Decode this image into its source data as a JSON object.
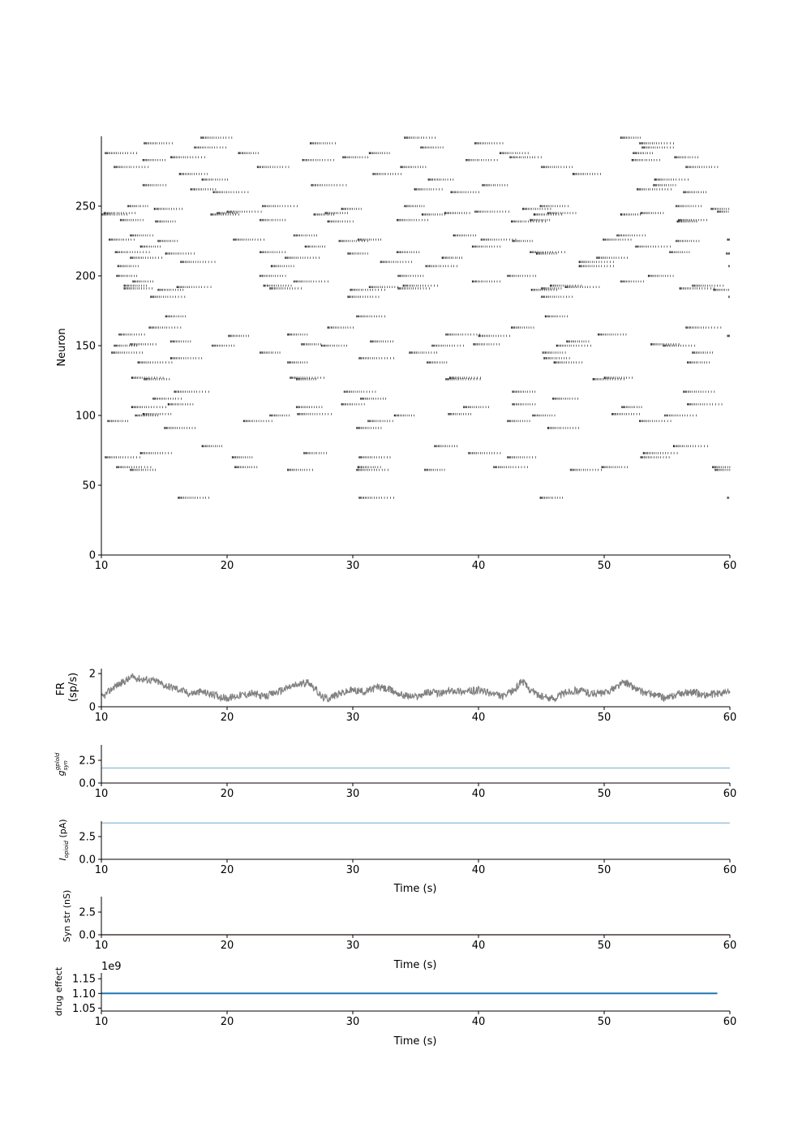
{
  "chart_data": [
    {
      "type": "scatter",
      "subtype": "raster",
      "title": "",
      "xlabel": "",
      "ylabel": "Neuron",
      "xlim": [
        10,
        60
      ],
      "ylim": [
        0,
        300
      ],
      "xticks": [
        "10",
        "20",
        "30",
        "40",
        "50",
        "60"
      ],
      "yticks": [
        "0",
        "50",
        "100",
        "150",
        "200",
        "250"
      ],
      "grid": false,
      "legend": "none",
      "marker_color": "#000000",
      "series": [
        {
          "bursts": [
            {
              "neuron": 41,
              "starts": [
                16.1,
                30.5,
                44.9,
                59.8
              ]
            },
            {
              "neuron": 61,
              "starts": [
                12.3,
                24.8,
                30.3,
                35.7,
                47.3,
                58.8
              ]
            },
            {
              "neuron": 63,
              "starts": [
                11.2,
                20.6,
                30.4,
                41.2,
                49.8,
                58.6
              ]
            },
            {
              "neuron": 70,
              "starts": [
                10.3,
                20.4,
                30.5,
                42.3,
                52.9
              ]
            },
            {
              "neuron": 73,
              "starts": [
                13.1,
                26.1,
                39.2,
                53.1
              ]
            },
            {
              "neuron": 78,
              "starts": [
                18.0,
                36.5,
                55.5
              ]
            },
            {
              "neuron": 91,
              "starts": [
                15.0,
                30.3,
                45.5
              ]
            },
            {
              "neuron": 96,
              "starts": [
                10.5,
                21.3,
                31.2,
                42.3,
                52.8
              ]
            },
            {
              "neuron": 100,
              "starts": [
                12.7,
                23.4,
                33.3,
                44.3,
                54.8
              ]
            },
            {
              "neuron": 101,
              "starts": [
                13.3,
                25.6,
                37.6,
                50.6
              ]
            },
            {
              "neuron": 106,
              "starts": [
                12.4,
                25.5,
                38.8,
                51.4
              ]
            },
            {
              "neuron": 108,
              "starts": [
                15.3,
                29.1,
                42.7,
                56.6
              ]
            },
            {
              "neuron": 112,
              "starts": [
                14.1,
                30.6,
                45.9
              ]
            },
            {
              "neuron": 117,
              "starts": [
                15.8,
                29.3,
                42.7,
                56.3
              ]
            },
            {
              "neuron": 126,
              "starts": [
                13.4,
                25.5,
                37.4,
                49.1
              ]
            },
            {
              "neuron": 127,
              "starts": [
                12.4,
                25.0,
                37.7,
                50.0
              ]
            },
            {
              "neuron": 138,
              "starts": [
                12.9,
                24.8,
                35.9,
                46.0,
                56.6
              ]
            },
            {
              "neuron": 141,
              "starts": [
                15.5,
                30.5,
                45.2
              ]
            },
            {
              "neuron": 145,
              "starts": [
                10.8,
                22.6,
                34.5,
                45.1,
                57.0
              ]
            },
            {
              "neuron": 150,
              "starts": [
                11.0,
                18.8,
                27.5,
                36.3,
                46.2,
                54.7
              ]
            },
            {
              "neuron": 151,
              "starts": [
                12.3,
                25.9,
                39.6,
                53.7
              ]
            },
            {
              "neuron": 153,
              "starts": [
                15.5,
                31.4,
                47.0
              ]
            },
            {
              "neuron": 157,
              "starts": [
                20.1,
                40.0,
                59.8
              ]
            },
            {
              "neuron": 158,
              "starts": [
                11.4,
                24.8,
                37.4,
                49.5
              ]
            },
            {
              "neuron": 163,
              "starts": [
                13.8,
                28.0,
                42.6,
                56.5
              ]
            },
            {
              "neuron": 171,
              "starts": [
                15.1,
                30.3,
                45.3
              ]
            },
            {
              "neuron": 185,
              "starts": [
                13.9,
                29.6,
                45.0,
                59.9
              ]
            },
            {
              "neuron": 190,
              "starts": [
                14.5,
                29.8,
                44.2,
                58.7
              ]
            },
            {
              "neuron": 191,
              "starts": [
                11.8,
                23.4,
                33.6,
                45.0,
                56.0
              ]
            },
            {
              "neuron": 192,
              "starts": [
                16.0,
                31.3,
                46.9
              ]
            },
            {
              "neuron": 193,
              "starts": [
                11.8,
                22.9,
                34.0,
                45.7,
                57.0
              ]
            },
            {
              "neuron": 196,
              "starts": [
                12.5,
                25.3,
                39.5,
                51.3
              ]
            },
            {
              "neuron": 200,
              "starts": [
                11.2,
                22.6,
                33.6,
                42.3,
                53.5
              ]
            },
            {
              "neuron": 207,
              "starts": [
                11.3,
                23.5,
                35.8,
                48.0,
                59.9
              ]
            },
            {
              "neuron": 210,
              "starts": [
                16.3,
                32.2,
                48.0
              ]
            },
            {
              "neuron": 213,
              "starts": [
                12.3,
                24.6,
                37.1,
                49.4
              ]
            },
            {
              "neuron": 216,
              "starts": [
                15.1,
                29.6,
                44.6,
                59.7
              ]
            },
            {
              "neuron": 217,
              "starts": [
                11.1,
                22.6,
                33.5,
                44.1,
                55.2
              ]
            },
            {
              "neuron": 221,
              "starts": [
                13.1,
                26.2,
                39.5,
                52.5
              ]
            },
            {
              "neuron": 225,
              "starts": [
                14.5,
                28.9,
                42.7,
                55.7
              ]
            },
            {
              "neuron": 226,
              "starts": [
                10.6,
                20.5,
                30.4,
                40.2,
                49.9,
                59.8
              ]
            },
            {
              "neuron": 229,
              "starts": [
                12.3,
                25.3,
                38.0,
                51.0
              ]
            },
            {
              "neuron": 239,
              "starts": [
                14.3,
                28.0,
                42.6,
                55.8
              ]
            },
            {
              "neuron": 240,
              "starts": [
                11.5,
                22.6,
                33.5,
                44.1,
                55.9
              ]
            },
            {
              "neuron": 244,
              "starts": [
                10.0,
                18.7,
                26.9,
                35.5,
                44.4,
                51.3
              ]
            },
            {
              "neuron": 245,
              "starts": [
                10.2,
                19.2,
                27.8,
                37.3,
                45.5,
                52.9
              ]
            },
            {
              "neuron": 246,
              "starts": [
                20.0,
                39.7,
                59.0
              ]
            },
            {
              "neuron": 248,
              "starts": [
                14.2,
                29.1,
                43.5,
                58.5
              ]
            },
            {
              "neuron": 250,
              "starts": [
                12.1,
                22.8,
                34.1,
                44.9,
                55.7
              ]
            },
            {
              "neuron": 260,
              "starts": [
                18.9,
                37.8,
                56.3
              ]
            },
            {
              "neuron": 262,
              "starts": [
                17.1,
                34.9,
                52.6
              ]
            },
            {
              "neuron": 265,
              "starts": [
                13.3,
                26.7,
                40.3,
                53.9
              ]
            },
            {
              "neuron": 269,
              "starts": [
                18.0,
                36.0,
                54.0
              ]
            },
            {
              "neuron": 273,
              "starts": [
                16.2,
                31.6,
                47.5
              ]
            },
            {
              "neuron": 278,
              "starts": [
                11.0,
                22.4,
                33.8,
                45.0,
                56.5
              ]
            },
            {
              "neuron": 283,
              "starts": [
                13.3,
                26.0,
                39.0,
                52.2
              ]
            },
            {
              "neuron": 285,
              "starts": [
                15.5,
                29.2,
                42.5,
                55.6
              ]
            },
            {
              "neuron": 288,
              "starts": [
                10.3,
                20.9,
                31.3,
                41.7,
                52.3
              ]
            },
            {
              "neuron": 292,
              "starts": [
                17.4,
                35.4,
                53.0
              ]
            },
            {
              "neuron": 295,
              "starts": [
                13.4,
                26.6,
                39.7,
                52.8
              ]
            },
            {
              "neuron": 299,
              "starts": [
                17.9,
                34.1,
                51.3
              ]
            }
          ]
        }
      ]
    },
    {
      "type": "line",
      "xlabel": "",
      "ylabel": "FR\n(sp/s)",
      "xlim": [
        10,
        60
      ],
      "ylim": [
        0,
        2.3
      ],
      "xticks": [
        "10",
        "20",
        "30",
        "40",
        "50",
        "60"
      ],
      "yticks": [
        "0",
        "2"
      ],
      "color": "#808080",
      "series": [
        {
          "x": [
            10,
            11,
            12,
            12.5,
            13,
            14,
            14.5,
            15,
            16,
            17,
            18,
            19,
            20,
            21,
            22,
            23,
            24,
            25,
            26,
            26.5,
            27,
            27.5,
            28,
            29,
            30,
            31,
            32,
            33,
            34,
            35,
            36,
            37,
            38,
            39,
            40,
            41,
            42,
            43,
            43.4,
            44,
            45,
            46,
            47,
            48,
            49,
            50,
            51,
            51.6,
            52,
            53,
            54,
            55,
            56,
            57,
            58,
            59,
            60
          ],
          "y": [
            0.5,
            1.2,
            1.6,
            1.8,
            1.7,
            1.6,
            1.5,
            1.3,
            1.1,
            0.8,
            0.9,
            0.7,
            0.5,
            0.7,
            0.8,
            0.6,
            0.9,
            1.2,
            1.4,
            1.5,
            1.1,
            0.6,
            0.5,
            0.8,
            1.0,
            0.9,
            1.2,
            1.0,
            0.7,
            0.6,
            0.9,
            0.8,
            1.0,
            0.9,
            1.0,
            0.8,
            0.6,
            1.1,
            1.6,
            1.1,
            0.6,
            0.5,
            0.9,
            1.0,
            0.8,
            0.8,
            1.2,
            1.5,
            1.3,
            0.9,
            0.7,
            0.5,
            0.8,
            0.9,
            0.7,
            0.8,
            0.9
          ]
        }
      ]
    },
    {
      "type": "line",
      "ylabel": "g_syn^{gplold}",
      "ylabel_main": "g",
      "ylabel_sub": "syn",
      "ylabel_sup": "gplold",
      "xlim": [
        10,
        60
      ],
      "ylim": [
        0,
        4.2
      ],
      "xticks": [
        "10",
        "20",
        "30",
        "40",
        "50",
        "60"
      ],
      "yticks": [
        "0.0",
        "2.5"
      ],
      "color": "#8cbcd8",
      "series": [
        {
          "x": [
            10,
            60
          ],
          "y": [
            1.65,
            1.65
          ]
        }
      ]
    },
    {
      "type": "line",
      "ylabel": "I_opioid (pA)",
      "ylabel_main": "I",
      "ylabel_sub": "opioid",
      "ylabel_rest": " (pA)",
      "xlabel": "Time (s)",
      "xlim": [
        10,
        60
      ],
      "ylim": [
        0,
        4.2
      ],
      "xticks": [
        "10",
        "20",
        "30",
        "40",
        "50",
        "60"
      ],
      "yticks": [
        "0.0",
        "2.5"
      ],
      "color": "#8cbcd8",
      "series": [
        {
          "x": [
            10,
            60
          ],
          "y": [
            4.0,
            4.0
          ]
        }
      ]
    },
    {
      "type": "line",
      "ylabel": "Syn str (nS)",
      "xlabel": "Time (s)",
      "xlim": [
        10,
        60
      ],
      "ylim": [
        0,
        4.2
      ],
      "xticks": [
        "10",
        "20",
        "30",
        "40",
        "50",
        "60"
      ],
      "yticks": [
        "0.0",
        "2.5"
      ],
      "color": "#c94040",
      "series": [
        {
          "x": [
            10,
            60
          ],
          "y": [
            0.0,
            0.0
          ]
        }
      ]
    },
    {
      "type": "line",
      "ylabel": "drug effect",
      "xlabel": "Time (s)",
      "offset_label": "1e9",
      "xlim": [
        10,
        60
      ],
      "ylim": [
        1.04,
        1.17
      ],
      "xticks": [
        "10",
        "20",
        "30",
        "40",
        "50",
        "60"
      ],
      "yticks": [
        "1.05",
        "1.10",
        "1.15"
      ],
      "color": "#1f77b4",
      "series": [
        {
          "x": [
            10,
            59
          ],
          "y": [
            1.1,
            1.1
          ]
        }
      ]
    }
  ]
}
